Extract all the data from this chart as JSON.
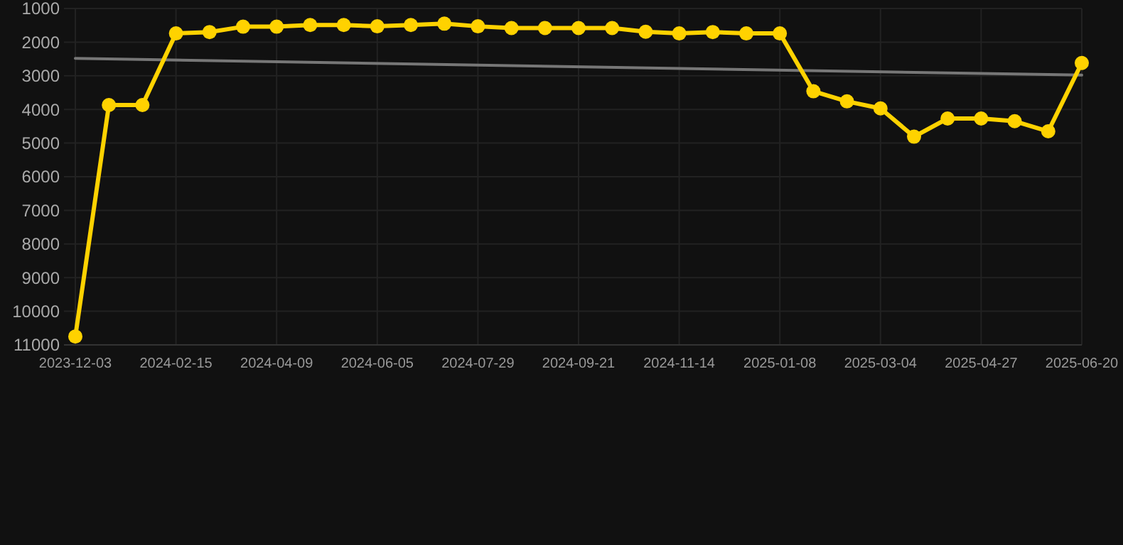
{
  "chart_data": {
    "type": "line",
    "categories": [
      "2023-12-03",
      null,
      null,
      "2024-02-15",
      null,
      null,
      "2024-04-09",
      null,
      null,
      "2024-06-05",
      null,
      null,
      "2024-07-29",
      null,
      null,
      "2024-09-21",
      null,
      null,
      "2024-11-14",
      null,
      null,
      "2025-01-08",
      null,
      null,
      "2025-03-04",
      null,
      null,
      "2025-04-27",
      null,
      null,
      "2025-06-20"
    ],
    "series": [
      {
        "color": "#ffd200",
        "marker": "circle",
        "values": [
          10750,
          3870,
          3870,
          1740,
          1700,
          1540,
          1540,
          1490,
          1490,
          1530,
          1490,
          1450,
          1530,
          1580,
          1580,
          1580,
          1580,
          1690,
          1740,
          1700,
          1740,
          1740,
          3460,
          3760,
          3970,
          4810,
          4270,
          4270,
          4350,
          4650,
          2620
        ]
      },
      {
        "type": "line",
        "color": "#777777",
        "marker": "none",
        "values": [
          2480,
          null,
          null,
          null,
          null,
          null,
          null,
          null,
          null,
          null,
          null,
          null,
          null,
          null,
          null,
          null,
          null,
          null,
          null,
          null,
          null,
          null,
          null,
          null,
          null,
          null,
          null,
          null,
          null,
          null,
          2980
        ]
      }
    ],
    "ylim": [
      11000,
      1000
    ],
    "yticks": [
      1000,
      2000,
      3000,
      4000,
      5000,
      6000,
      7000,
      8000,
      9000,
      10000,
      11000
    ],
    "grid": true
  }
}
